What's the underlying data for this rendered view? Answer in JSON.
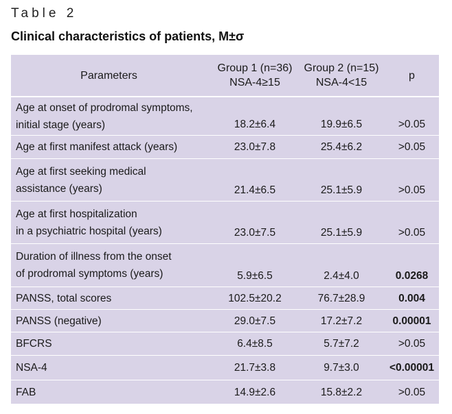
{
  "caption": {
    "label": "Table 2",
    "title": "Clinical characteristics of patients, M±σ"
  },
  "header": {
    "param": "Parameters",
    "g1_line1": "Group 1 (n=36)",
    "g1_line2": "NSA-4≥15",
    "g2_line1": "Group 2 (n=15)",
    "g2_line2": "NSA-4<15",
    "p": "p"
  },
  "rows": [
    {
      "param_line1": "Age at onset of prodromal symptoms,",
      "param_line2": "initial stage (years)",
      "g1": "18.2±6.4",
      "g2": "19.9±6.5",
      "p": ">0.05",
      "p_bold": false
    },
    {
      "param_line1": "Age at first manifest attack (years)",
      "param_line2": "",
      "g1": "23.0±7.8",
      "g2": "25.4±6.2",
      "p": ">0.05",
      "p_bold": false
    },
    {
      "param_line1": "Age at first seeking medical",
      "param_line2": "assistance (years)",
      "g1": "21.4±6.5",
      "g2": "25.1±5.9",
      "p": ">0.05",
      "p_bold": false
    },
    {
      "param_line1": "Age at first hospitalization",
      "param_line2": "in a psychiatric hospital (years)",
      "g1": "23.0±7.5",
      "g2": "25.1±5.9",
      "p": ">0.05",
      "p_bold": false
    },
    {
      "param_line1": "Duration of illness from the onset",
      "param_line2": "of prodromal symptoms (years)",
      "g1": "5.9±6.5",
      "g2": "2.4±4.0",
      "p": "0.0268",
      "p_bold": true
    },
    {
      "param_line1": "PANSS, total scores",
      "param_line2": "",
      "g1": "102.5±20.2",
      "g2": "76.7±28.9",
      "p": "0.004",
      "p_bold": true
    },
    {
      "param_line1": "PANSS (negative)",
      "param_line2": "",
      "g1": "29.0±7.5",
      "g2": "17.2±7.2",
      "p": "0.00001",
      "p_bold": true
    },
    {
      "param_line1": "BFCRS",
      "param_line2": "",
      "g1": "6.4±8.5",
      "g2": "5.7±7.2",
      "p": ">0.05",
      "p_bold": false
    },
    {
      "param_line1": "NSA-4",
      "param_line2": "",
      "g1": "21.7±3.8",
      "g2": "9.7±3.0",
      "p": "<0.00001",
      "p_bold": true
    },
    {
      "param_line1": "FAB",
      "param_line2": "",
      "g1": "14.9±2.6",
      "g2": "15.8±2.2",
      "p": ">0.05",
      "p_bold": false
    }
  ]
}
